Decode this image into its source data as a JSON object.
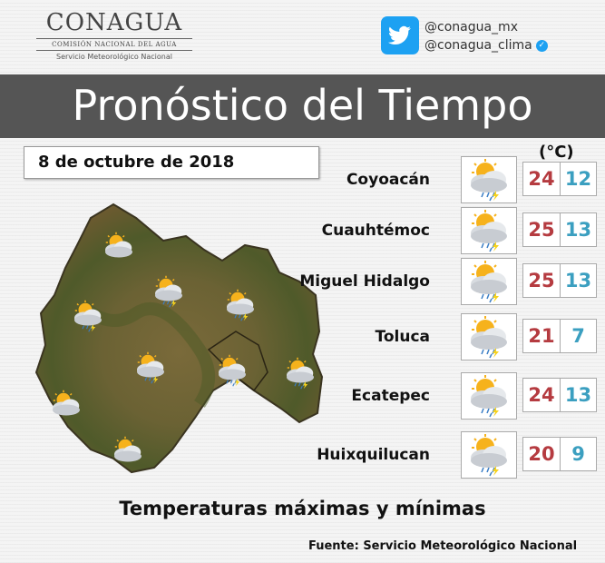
{
  "header": {
    "logo_main": "CONAGUA",
    "logo_sub": "COMISIÓN NACIONAL DEL AGUA",
    "logo_sub2": "Servicio Meteorológico Nacional",
    "twitter_handles": [
      "@conagua_mx",
      "@conagua_clima"
    ],
    "twitter_icon": "twitter-bird-icon"
  },
  "banner": {
    "title": "Pronóstico del Tiempo"
  },
  "date": "8 de octubre de 2018",
  "unit_label": "(°C)",
  "forecasts": [
    {
      "city": "Coyoacán",
      "max": "24",
      "min": "12",
      "icon": "partly-cloudy-rain-icon"
    },
    {
      "city": "Cuauhtémoc",
      "max": "25",
      "min": "13",
      "icon": "partly-cloudy-rain-icon"
    },
    {
      "city": "Miguel Hidalgo",
      "max": "25",
      "min": "13",
      "icon": "partly-cloudy-rain-icon"
    },
    {
      "city": "Toluca",
      "max": "21",
      "min": "7",
      "icon": "partly-cloudy-rain-icon"
    },
    {
      "city": "Ecatepec",
      "max": "24",
      "min": "13",
      "icon": "partly-cloudy-rain-icon"
    },
    {
      "city": "Huixquilucan",
      "max": "20",
      "min": "9",
      "icon": "partly-cloudy-rain-icon"
    }
  ],
  "map_icons": [
    "partly-cloudy-icon",
    "partly-cloudy-rain-icon",
    "partly-cloudy-rain-icon",
    "partly-cloudy-rain-icon",
    "partly-cloudy-rain-icon",
    "partly-cloudy-rain-icon",
    "partly-cloudy-rain-icon",
    "partly-cloudy-icon",
    "partly-cloudy-icon"
  ],
  "colors": {
    "max": "#b53b40",
    "min": "#3b9fc0",
    "banner": "#555555",
    "twitter": "#1da1f2"
  },
  "footer": {
    "subtitle": "Temperaturas máximas y mínimas",
    "source": "Fuente: Servicio Meteorológico Nacional"
  }
}
